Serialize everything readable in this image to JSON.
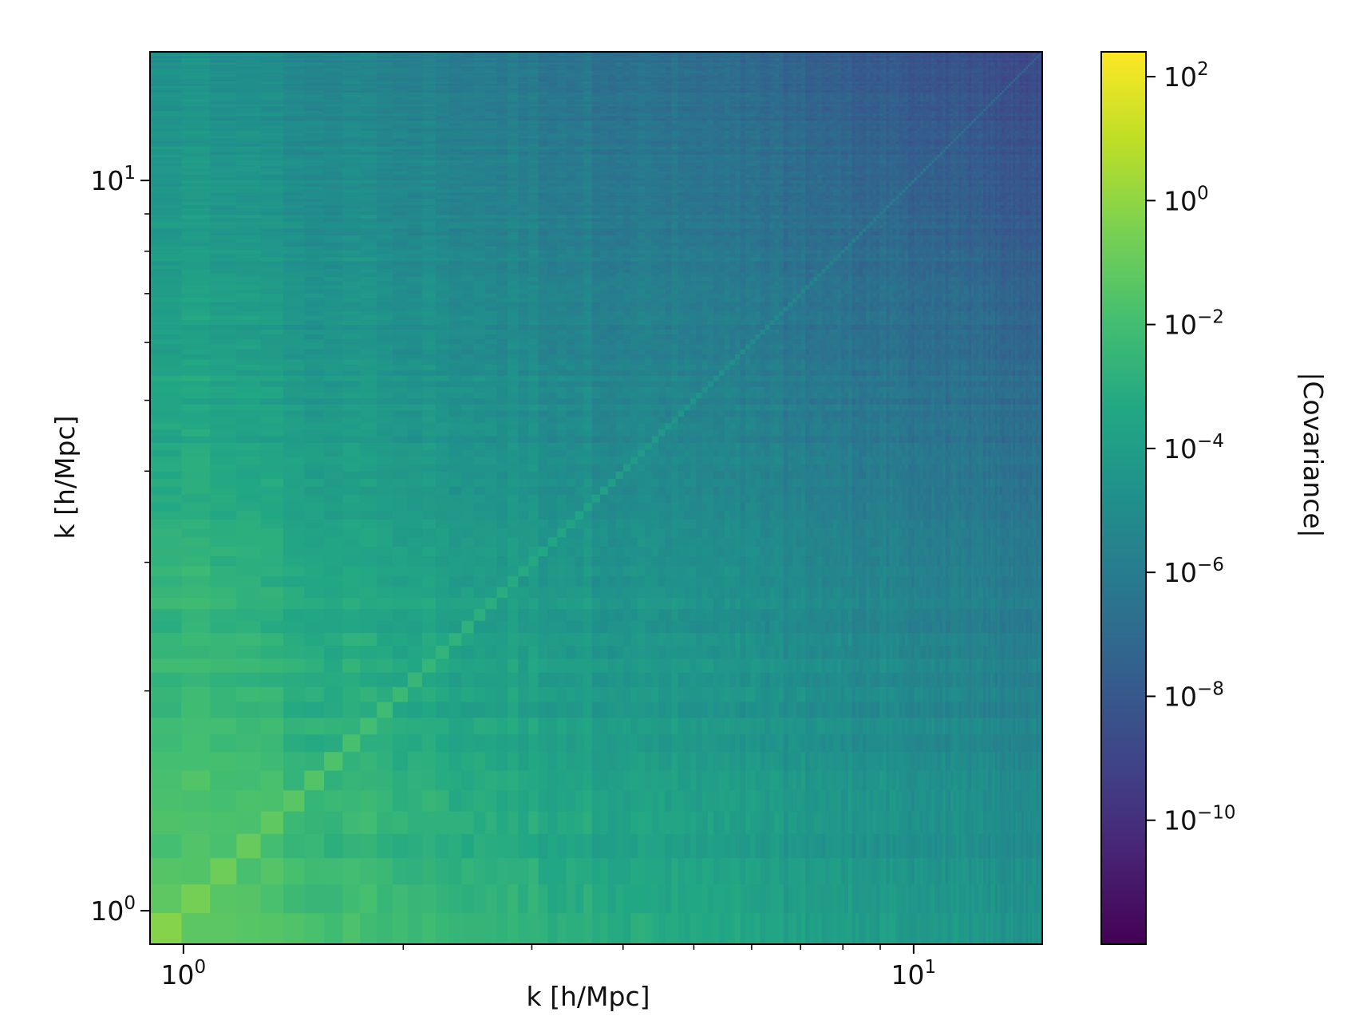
{
  "chart_data": {
    "type": "heatmap",
    "title": "",
    "xlabel": "k [h/Mpc]",
    "ylabel": "k [h/Mpc]",
    "x_scale": "log",
    "y_scale": "log",
    "xlim": [
      0.9,
      15.0
    ],
    "ylim": [
      0.9,
      15.0
    ],
    "x_ticks": [
      {
        "value": 1,
        "base": "10",
        "exp": "0"
      },
      {
        "value": 10,
        "base": "10",
        "exp": "1"
      }
    ],
    "y_ticks": [
      {
        "value": 1,
        "base": "10",
        "exp": "0"
      },
      {
        "value": 10,
        "base": "10",
        "exp": "1"
      }
    ],
    "matrix": {
      "description": "Symmetric covariance matrix of the power spectrum across k bins; absolute values shown on a log color scale.",
      "diagonal_log10": [
        {
          "k": 0.9,
          "value": 0.0
        },
        {
          "k": 1.0,
          "value": -0.5
        },
        {
          "k": 1.5,
          "value": -1.5
        },
        {
          "k": 2.0,
          "value": -2.3
        },
        {
          "k": 3.0,
          "value": -3.3
        },
        {
          "k": 5.0,
          "value": -4.6
        },
        {
          "k": 10.0,
          "value": -6.3
        },
        {
          "k": 15.0,
          "value": -7.2
        }
      ],
      "off_diagonal_log10": {
        "low_k_low_k": -1.5,
        "low_k_high_k": -4.5,
        "high_k_high_k": -8.0,
        "corner_min": -10.0
      }
    },
    "colorbar": {
      "label": "|Covariance|",
      "scale": "log",
      "colormap": "viridis",
      "range_log10": [
        -12,
        2.4
      ],
      "ticks": [
        {
          "value": 100,
          "base": "10",
          "exp": "2"
        },
        {
          "value": 1,
          "base": "10",
          "exp": "0"
        },
        {
          "value": 0.01,
          "base": "10",
          "exp": "−2"
        },
        {
          "value": 0.0001,
          "base": "10",
          "exp": "−4"
        },
        {
          "value": 1e-06,
          "base": "10",
          "exp": "−6"
        },
        {
          "value": 1e-08,
          "base": "10",
          "exp": "−8"
        },
        {
          "value": 1e-10,
          "base": "10",
          "exp": "−10"
        }
      ]
    },
    "grid": false,
    "legend": "none"
  }
}
